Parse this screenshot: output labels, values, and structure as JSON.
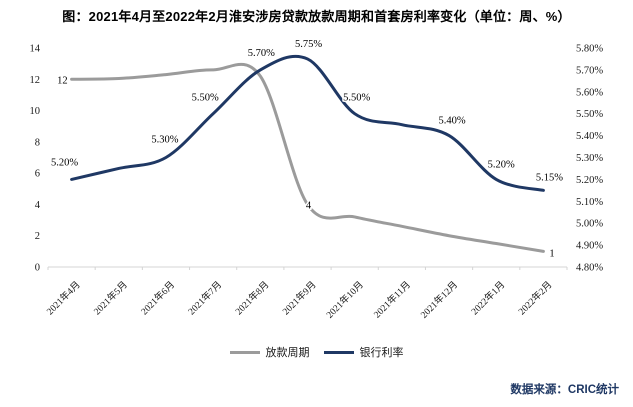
{
  "title": "图：2021年4月至2022年2月淮安涉房贷款放款周期和首套房利率变化（单位：周、%）",
  "source": "数据来源：CRIC统计",
  "colors": {
    "loan_cycle_line": "#9b9b9b",
    "bank_rate_line": "#1f3864",
    "axis_line": "#d4d4d4",
    "label_text": "#000000"
  },
  "legend": {
    "items": [
      {
        "key": "loan-cycle",
        "label": "放款周期",
        "color": "#9b9b9b"
      },
      {
        "key": "bank-rate",
        "label": "银行利率",
        "color": "#1f3864"
      }
    ]
  },
  "chart_data": {
    "type": "line",
    "smooth": true,
    "grid": false,
    "legend_position": "bottom",
    "categories": [
      "2021年4月",
      "2021年5月",
      "2021年6月",
      "2021年7月",
      "2021年8月",
      "2021年9月",
      "2021年10月",
      "2021年11月",
      "2021年12月",
      "2022年1月",
      "2022年2月"
    ],
    "left_axis": {
      "ticks": [
        "0",
        "2",
        "4",
        "6",
        "8",
        "10",
        "12",
        "14"
      ],
      "range": [
        0,
        14
      ]
    },
    "right_axis": {
      "ticks": [
        "4.80%",
        "4.90%",
        "5.00%",
        "5.10%",
        "5.20%",
        "5.30%",
        "5.40%",
        "5.50%",
        "5.60%",
        "5.70%",
        "5.80%"
      ],
      "range": [
        4.8,
        5.8
      ]
    },
    "series": [
      {
        "key": "loan-cycle",
        "name": "放款周期",
        "axis": "left",
        "unit": "周",
        "color": "#9b9b9b",
        "values": [
          12,
          12.05,
          12.3,
          12.6,
          12.2,
          4,
          3.2,
          2.6,
          2,
          1.5,
          1
        ],
        "point_labels": [
          "12",
          null,
          null,
          null,
          null,
          "4",
          null,
          null,
          null,
          null,
          "1"
        ],
        "label_offsets": [
          [
            -4,
            4,
            "end"
          ],
          null,
          null,
          null,
          null,
          [
            1,
            4,
            "middle"
          ],
          null,
          null,
          null,
          null,
          [
            6,
            5,
            "start"
          ]
        ]
      },
      {
        "key": "bank-rate",
        "name": "银行利率",
        "axis": "right",
        "unit": "%",
        "color": "#1f3864",
        "values": [
          5.2,
          5.25,
          5.3,
          5.5,
          5.7,
          5.75,
          5.5,
          5.45,
          5.4,
          5.2,
          5.15
        ],
        "point_labels": [
          "5.20%",
          null,
          "5.30%",
          "5.50%",
          "5.70%",
          "5.75%",
          "5.50%",
          null,
          "5.40%",
          "5.20%",
          "5.15%"
        ],
        "label_offsets": [
          [
            -7,
            -14,
            "middle"
          ],
          null,
          [
            -1,
            -15,
            "middle"
          ],
          [
            -8,
            -13,
            "middle"
          ],
          [
            1,
            -14,
            "middle"
          ],
          [
            1,
            -12,
            "middle"
          ],
          [
            2,
            -13,
            "middle"
          ],
          null,
          [
            3,
            -12,
            "middle"
          ],
          [
            5,
            -12,
            "middle"
          ],
          [
            6,
            -10,
            "middle"
          ]
        ]
      }
    ]
  }
}
